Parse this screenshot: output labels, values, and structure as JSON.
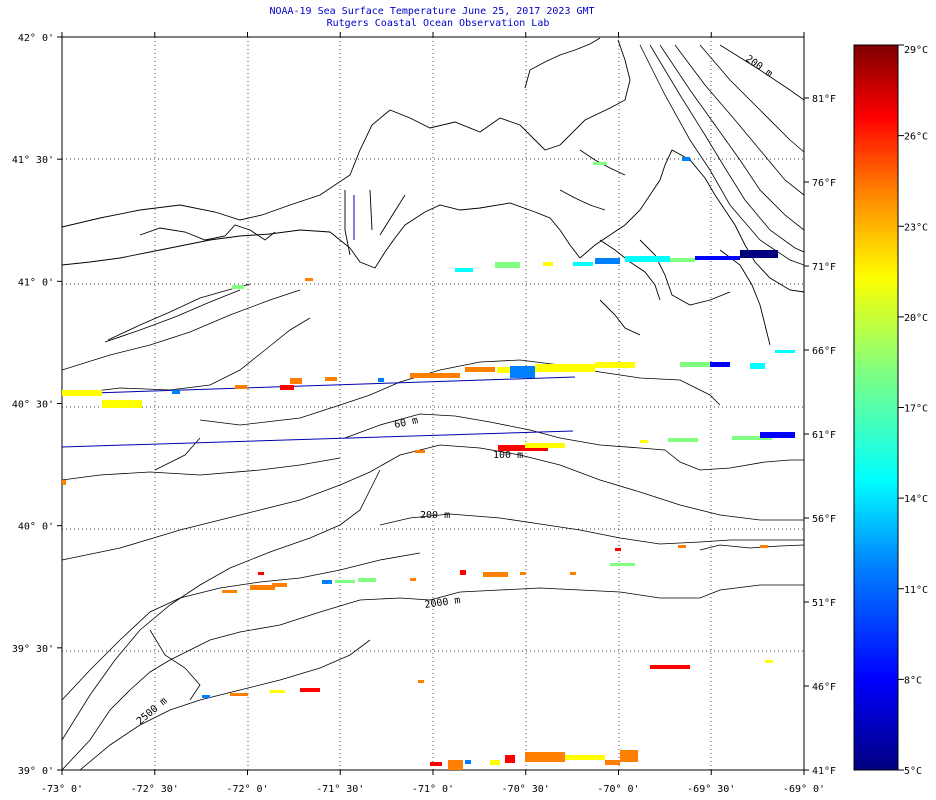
{
  "header": {
    "title": "NOAA-19 Sea Surface Temperature June 25, 2017 2023 GMT",
    "subtitle": "Rutgers Coastal Ocean Observation Lab"
  },
  "axes": {
    "lon_labels": [
      "-73° 0'",
      "-72° 30'",
      "-72° 0'",
      "-71° 30'",
      "-71° 0'",
      "-70° 30'",
      "-70° 0'",
      "-69° 30'",
      "-69° 0'"
    ],
    "lat_labels": [
      "42° 0'",
      "41° 30'",
      "41° 0'",
      "40° 30'",
      "40° 0'",
      "39° 30'",
      "39° 0'"
    ],
    "fahrenheit_labels": [
      "81°F",
      "76°F",
      "71°F",
      "66°F",
      "61°F",
      "56°F",
      "51°F",
      "46°F",
      "41°F"
    ],
    "lon_range": [
      -73,
      -69
    ],
    "lat_range": [
      39,
      42
    ]
  },
  "colorbar": {
    "labels": [
      "29°C",
      "26°C",
      "23°C",
      "20°C",
      "17°C",
      "14°C",
      "11°C",
      "8°C",
      "5°C"
    ],
    "range_c": [
      5,
      29
    ],
    "stops": [
      "#00007f",
      "#0000ff",
      "#0080ff",
      "#00ffff",
      "#80ff80",
      "#ffff00",
      "#ff8000",
      "#ff0000",
      "#7f0000"
    ]
  },
  "contours": {
    "labels": [
      "60 m",
      "100 m",
      "200 m",
      "2000 m",
      "2500 m",
      "200 m"
    ]
  }
}
